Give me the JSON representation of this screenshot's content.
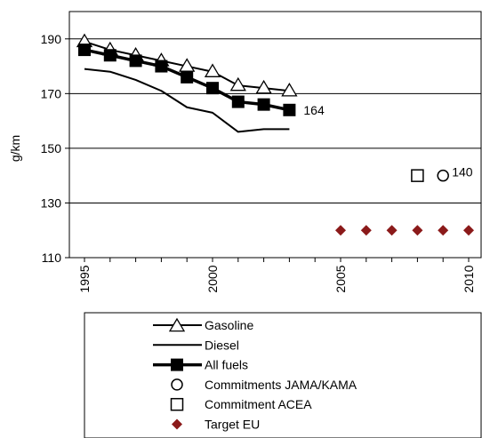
{
  "chart_data": {
    "type": "line",
    "title": "",
    "ylabel": "g/km",
    "xlabel": "",
    "xlim": [
      1995,
      2010
    ],
    "ylim": [
      110,
      200
    ],
    "y_ticks": [
      110,
      130,
      150,
      170,
      190
    ],
    "x_ticks": [
      1995,
      2000,
      2005,
      2010
    ],
    "y_tick_labels": [
      "110",
      "130",
      "150",
      "170",
      "190"
    ],
    "x_tick_labels": [
      "1995",
      "2000",
      "2005",
      "2010"
    ],
    "grid": "horizontal",
    "legend_position": "bottom",
    "series": [
      {
        "name": "Gasoline",
        "style": "line-triangle",
        "x": [
          1995,
          1996,
          1997,
          1998,
          1999,
          2000,
          2001,
          2002,
          2003
        ],
        "y": [
          189,
          186,
          184,
          182,
          180,
          178,
          173,
          172,
          171
        ]
      },
      {
        "name": "Diesel",
        "style": "line",
        "x": [
          1995,
          1996,
          1997,
          1998,
          1999,
          2000,
          2001,
          2002,
          2003
        ],
        "y": [
          179,
          178,
          175,
          171,
          165,
          163,
          156,
          157,
          157
        ]
      },
      {
        "name": "All fuels",
        "style": "thick-line-square",
        "x": [
          1995,
          1996,
          1997,
          1998,
          1999,
          2000,
          2001,
          2002,
          2003
        ],
        "y": [
          186,
          184,
          182,
          180,
          176,
          172,
          167,
          166,
          164
        ]
      },
      {
        "name": "Commitments JAMA/KAMA",
        "style": "circle",
        "x": [
          2009
        ],
        "y": [
          140
        ]
      },
      {
        "name": "Commitment ACEA",
        "style": "square-open",
        "x": [
          2008
        ],
        "y": [
          140
        ]
      },
      {
        "name": "Target EU",
        "style": "diamond",
        "color": "#8B1A1A",
        "x": [
          2005,
          2006,
          2007,
          2008,
          2009,
          2010
        ],
        "y": [
          120,
          120,
          120,
          120,
          120,
          120
        ]
      }
    ],
    "annotations": [
      {
        "text": "164",
        "x": 2003,
        "y": 164
      },
      {
        "text": "140",
        "x": 2009,
        "y": 140
      }
    ]
  }
}
